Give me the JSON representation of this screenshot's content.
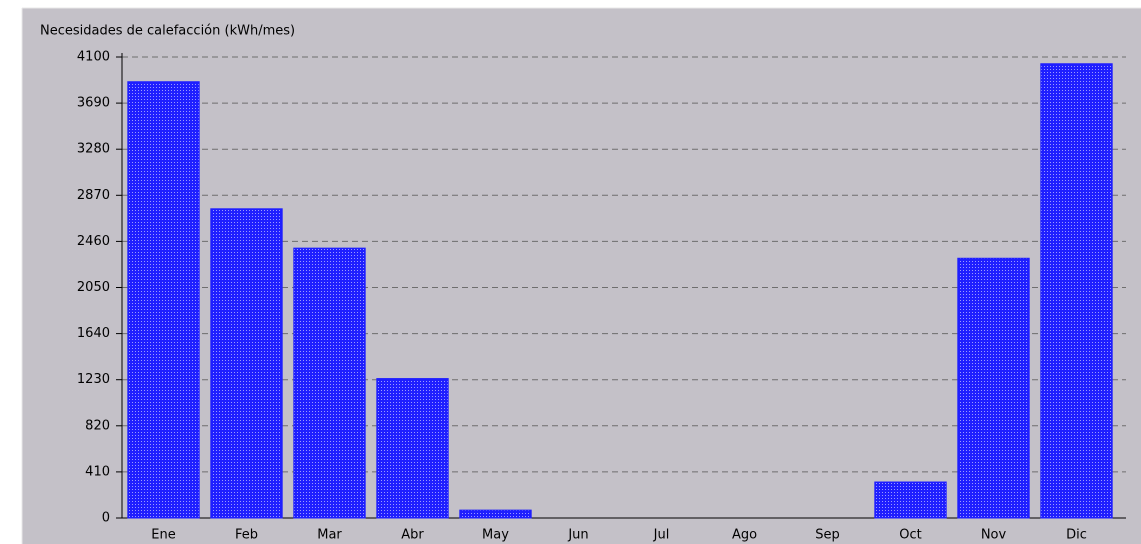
{
  "chart_data": {
    "type": "bar",
    "title": "Necesidades de calefacción (kWh/mes)",
    "categories": [
      "Ene",
      "Feb",
      "Mar",
      "Abr",
      "May",
      "Jun",
      "Jul",
      "Ago",
      "Sep",
      "Oct",
      "Nov",
      "Dic"
    ],
    "values": [
      3880,
      2750,
      2400,
      1240,
      70,
      0,
      0,
      0,
      0,
      320,
      2310,
      4040
    ],
    "color": "#1f1fff",
    "ylim": [
      0,
      4100
    ],
    "yticks": [
      0,
      410,
      820,
      1230,
      1640,
      2050,
      2460,
      2870,
      3280,
      3690,
      4100
    ],
    "grid": true
  }
}
